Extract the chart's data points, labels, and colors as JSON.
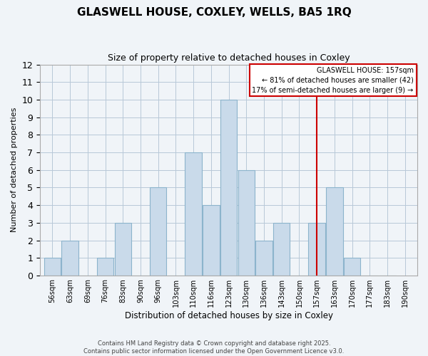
{
  "title": "GLASWELL HOUSE, COXLEY, WELLS, BA5 1RQ",
  "subtitle": "Size of property relative to detached houses in Coxley",
  "xlabel": "Distribution of detached houses by size in Coxley",
  "ylabel": "Number of detached properties",
  "categories": [
    "56sqm",
    "63sqm",
    "69sqm",
    "76sqm",
    "83sqm",
    "90sqm",
    "96sqm",
    "103sqm",
    "110sqm",
    "116sqm",
    "123sqm",
    "130sqm",
    "136sqm",
    "143sqm",
    "150sqm",
    "157sqm",
    "163sqm",
    "170sqm",
    "177sqm",
    "183sqm",
    "190sqm"
  ],
  "bar_heights": [
    1,
    2,
    0,
    1,
    3,
    0,
    5,
    0,
    7,
    4,
    10,
    6,
    2,
    3,
    0,
    3,
    5,
    1,
    0,
    0
  ],
  "bar_color": "#c9daea",
  "bar_edge_color": "#8cb4cc",
  "red_line_index": 15,
  "highlight_color": "#cc0000",
  "ylim": [
    0,
    12
  ],
  "yticks": [
    0,
    1,
    2,
    3,
    4,
    5,
    6,
    7,
    8,
    9,
    10,
    11,
    12
  ],
  "legend_title": "GLASWELL HOUSE: 157sqm",
  "legend_line1": "← 81% of detached houses are smaller (42)",
  "legend_line2": "17% of semi-detached houses are larger (9) →",
  "legend_border_color": "#cc0000",
  "footnote1": "Contains HM Land Registry data © Crown copyright and database right 2025.",
  "footnote2": "Contains public sector information licensed under the Open Government Licence v3.0.",
  "background_color": "#f0f4f8",
  "grid_color": "#b8c8d8"
}
